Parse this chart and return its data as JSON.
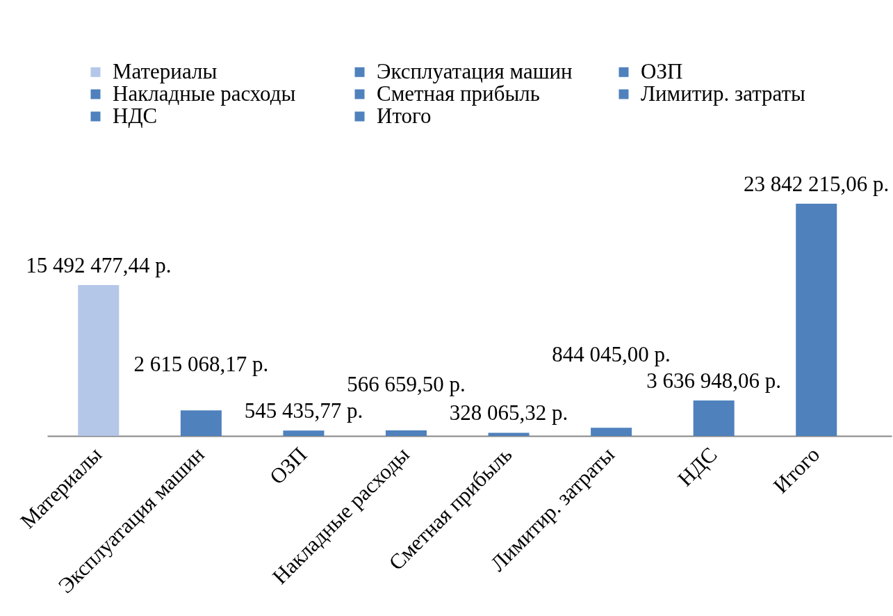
{
  "chart_data": {
    "type": "bar",
    "categories": [
      "Материалы",
      "Эксплуатация машин",
      "ОЗП",
      "Накладные расходы",
      "Сметная прибыль",
      "Лимитир. затраты",
      "НДС",
      "Итого"
    ],
    "series": [
      {
        "name": "Материалы",
        "color": "#b4c7e9",
        "values": [
          15492477.44,
          null,
          null,
          null,
          null,
          null,
          null,
          null
        ],
        "value_labels": [
          "15 492 477,44 р.",
          null,
          null,
          null,
          null,
          null,
          null,
          null
        ]
      },
      {
        "name": "Эксплуатация машин",
        "color": "#4f81bd",
        "values": [
          null,
          2615068.17,
          null,
          null,
          null,
          null,
          null,
          null
        ],
        "value_labels": [
          null,
          "2 615 068,17 р.",
          null,
          null,
          null,
          null,
          null,
          null
        ]
      },
      {
        "name": "ОЗП",
        "color": "#4f81bd",
        "values": [
          null,
          null,
          545435.77,
          null,
          null,
          null,
          null,
          null
        ],
        "value_labels": [
          null,
          null,
          "545 435,77 р.",
          null,
          null,
          null,
          null,
          null
        ]
      },
      {
        "name": "Накладные расходы",
        "color": "#4f81bd",
        "values": [
          null,
          null,
          null,
          566659.5,
          null,
          null,
          null,
          null
        ],
        "value_labels": [
          null,
          null,
          null,
          "566 659,50 р.",
          null,
          null,
          null,
          null
        ]
      },
      {
        "name": "Сметная прибыль",
        "color": "#4f81bd",
        "values": [
          null,
          null,
          null,
          null,
          328065.32,
          null,
          null,
          null
        ],
        "value_labels": [
          null,
          null,
          null,
          null,
          "328 065,32 р.",
          null,
          null,
          null
        ]
      },
      {
        "name": "Лимитир. затраты",
        "color": "#4f81bd",
        "values": [
          null,
          null,
          null,
          null,
          null,
          844045.0,
          null,
          null
        ],
        "value_labels": [
          null,
          null,
          null,
          null,
          null,
          "844 045,00 р.",
          null,
          null
        ]
      },
      {
        "name": "НДС",
        "color": "#4f81bd",
        "values": [
          null,
          null,
          null,
          null,
          null,
          null,
          3636948.06,
          null
        ],
        "value_labels": [
          null,
          null,
          null,
          null,
          null,
          null,
          "3 636 948,06 р.",
          null
        ]
      },
      {
        "name": "Итого",
        "color": "#4f81bd",
        "values": [
          null,
          null,
          null,
          null,
          null,
          null,
          null,
          23842215.06
        ],
        "value_labels": [
          null,
          null,
          null,
          null,
          null,
          null,
          null,
          "23 842 215,06 р."
        ]
      }
    ],
    "legend": "top",
    "tick_labels": "x"
  }
}
